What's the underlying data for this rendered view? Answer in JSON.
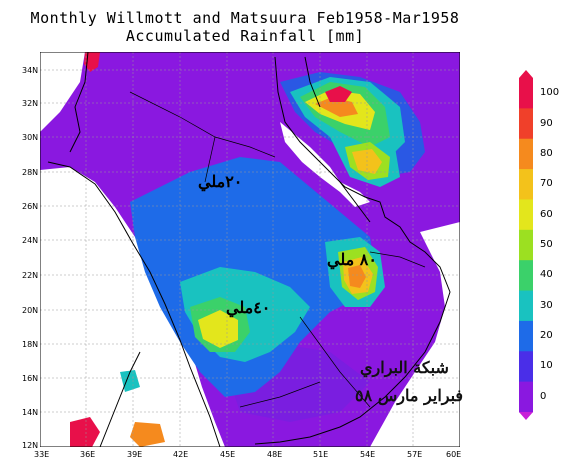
{
  "title": {
    "line1": "Monthly Willmott and Matsuura Feb1958-Mar1958",
    "line2": "Accumulated Rainfall [mm]"
  },
  "axes": {
    "lat_labels": [
      "34N",
      "32N",
      "30N",
      "28N",
      "26N",
      "24N",
      "22N",
      "20N",
      "18N",
      "16N",
      "14N",
      "12N"
    ],
    "lon_labels": [
      "33E",
      "36E",
      "39E",
      "42E",
      "45E",
      "48E",
      "51E",
      "54E",
      "57E",
      "60E"
    ]
  },
  "colorbar": {
    "ticks": [
      "100",
      "90",
      "80",
      "70",
      "60",
      "50",
      "40",
      "30",
      "20",
      "10",
      "0"
    ],
    "colors": [
      "#e8104a",
      "#f0402a",
      "#f58a1e",
      "#f3c21b",
      "#e3e61c",
      "#9ce021",
      "#3bd16a",
      "#19c2c0",
      "#1e6be8",
      "#4a2ee8",
      "#8a18e0",
      "#c81ed8"
    ]
  },
  "annotations": {
    "north": "٢٠ملي",
    "east": "٨٠ ملي",
    "southwest": "٤٠ملي"
  },
  "watermark": {
    "line1": "شبكة البراري",
    "line2": "فبراير مارس ٥٨"
  }
}
